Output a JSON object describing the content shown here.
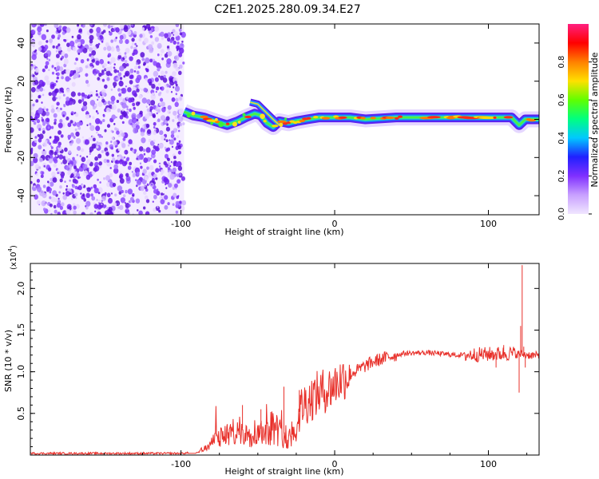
{
  "title": "C2E1.2025.280.09.34.E27",
  "colors": {
    "snr_line": "#e8302a",
    "frame": "#000000",
    "spectrum_low": "#f2e6ff",
    "spectrum_mid": "#7a2ff0"
  },
  "chart_data": [
    {
      "type": "heatmap",
      "name": "spectrogram",
      "xlabel": "Height of straight line (km)",
      "ylabel": "Frequency (Hz)",
      "xlim": [
        -198,
        133
      ],
      "ylim": [
        -50,
        50
      ],
      "x_ticks": [
        -100,
        0,
        100
      ],
      "x_tick_labels": [
        "-100",
        "0",
        "100"
      ],
      "y_ticks": [
        40,
        20,
        0,
        -20,
        -40
      ],
      "y_tick_labels": [
        "40",
        "20",
        "0",
        "-20",
        "-40"
      ],
      "noise_region_x": [
        -198,
        -98
      ],
      "signal_track": [
        {
          "x": -98,
          "y": 4
        },
        {
          "x": -92,
          "y": 2
        },
        {
          "x": -85,
          "y": 1
        },
        {
          "x": -78,
          "y": -1
        },
        {
          "x": -70,
          "y": -3
        },
        {
          "x": -63,
          "y": -1
        },
        {
          "x": -58,
          "y": 1
        },
        {
          "x": -52,
          "y": 3
        },
        {
          "x": -48,
          "y": 2
        },
        {
          "x": -44,
          "y": -2
        },
        {
          "x": -40,
          "y": -4
        },
        {
          "x": -36,
          "y": -1
        },
        {
          "x": -30,
          "y": -2
        },
        {
          "x": -25,
          "y": -1
        },
        {
          "x": -18,
          "y": 0
        },
        {
          "x": -10,
          "y": 1
        },
        {
          "x": 0,
          "y": 1
        },
        {
          "x": 10,
          "y": 1
        },
        {
          "x": 20,
          "y": 0
        },
        {
          "x": 40,
          "y": 1
        },
        {
          "x": 60,
          "y": 1
        },
        {
          "x": 80,
          "y": 1
        },
        {
          "x": 100,
          "y": 1
        },
        {
          "x": 115,
          "y": 1
        },
        {
          "x": 120,
          "y": -3
        },
        {
          "x": 124,
          "y": 0
        },
        {
          "x": 133,
          "y": 0
        }
      ],
      "branch_track": [
        {
          "x": -55,
          "y": 9
        },
        {
          "x": -50,
          "y": 8
        },
        {
          "x": -45,
          "y": 4
        },
        {
          "x": -40,
          "y": 0
        },
        {
          "x": -36,
          "y": -3
        }
      ],
      "colorbar": {
        "label": "Normalized spectral amplitude",
        "range": [
          0,
          1
        ],
        "ticks": [
          0.0,
          0.2,
          0.4,
          0.6,
          0.8
        ],
        "tick_labels": [
          "0.0",
          "0.2",
          "0.4",
          "0.6",
          "0.8"
        ],
        "stops": [
          "#f0e6ff",
          "#c8a0ff",
          "#8030ff",
          "#2020ff",
          "#00c8ff",
          "#00ff80",
          "#60ff00",
          "#ffe000",
          "#ff8000",
          "#ff0000",
          "#ff2080"
        ]
      }
    },
    {
      "type": "line",
      "name": "snr",
      "xlabel": "Height of straight line (km)",
      "ylabel": "SNR (10 * v/v)",
      "scale_label": "(x10",
      "scale_exponent": "4",
      "scale_close": ")",
      "xlim": [
        -198,
        133
      ],
      "ylim": [
        0,
        2.3
      ],
      "x_ticks": [
        -100,
        0,
        100
      ],
      "x_tick_labels": [
        "-100",
        "0",
        "100"
      ],
      "y_ticks": [
        0.5,
        1.0,
        1.5,
        2.0
      ],
      "y_tick_labels": [
        "0.5",
        "1.0",
        "1.5",
        "2.0"
      ],
      "envelope": [
        {
          "x": -198,
          "y": 0.02
        },
        {
          "x": -100,
          "y": 0.02
        },
        {
          "x": -92,
          "y": 0.03
        },
        {
          "x": -88,
          "y": 0.08
        },
        {
          "x": -80,
          "y": 0.18
        },
        {
          "x": -70,
          "y": 0.28
        },
        {
          "x": -60,
          "y": 0.32
        },
        {
          "x": -50,
          "y": 0.3
        },
        {
          "x": -40,
          "y": 0.38
        },
        {
          "x": -30,
          "y": 0.2
        },
        {
          "x": -25,
          "y": 0.45
        },
        {
          "x": -20,
          "y": 0.62
        },
        {
          "x": -10,
          "y": 0.75
        },
        {
          "x": -3,
          "y": 0.8
        },
        {
          "x": 5,
          "y": 0.92
        },
        {
          "x": 15,
          "y": 1.02
        },
        {
          "x": 25,
          "y": 1.12
        },
        {
          "x": 35,
          "y": 1.18
        },
        {
          "x": 45,
          "y": 1.22
        },
        {
          "x": 60,
          "y": 1.23
        },
        {
          "x": 80,
          "y": 1.2
        },
        {
          "x": 100,
          "y": 1.21
        },
        {
          "x": 115,
          "y": 1.22
        },
        {
          "x": 133,
          "y": 1.19
        }
      ],
      "spikes": [
        {
          "x": 120,
          "y": 0.75
        },
        {
          "x": 121,
          "y": 1.55
        },
        {
          "x": 122,
          "y": 2.28
        },
        {
          "x": 123,
          "y": 1.3
        },
        {
          "x": 124,
          "y": 1.05
        },
        {
          "x": 110,
          "y": 1.32
        },
        {
          "x": 105,
          "y": 1.05
        },
        {
          "x": -33,
          "y": 0.82
        },
        {
          "x": -23,
          "y": 0.78
        },
        {
          "x": -60,
          "y": 0.6
        },
        {
          "x": -48,
          "y": 0.55
        }
      ]
    }
  ]
}
